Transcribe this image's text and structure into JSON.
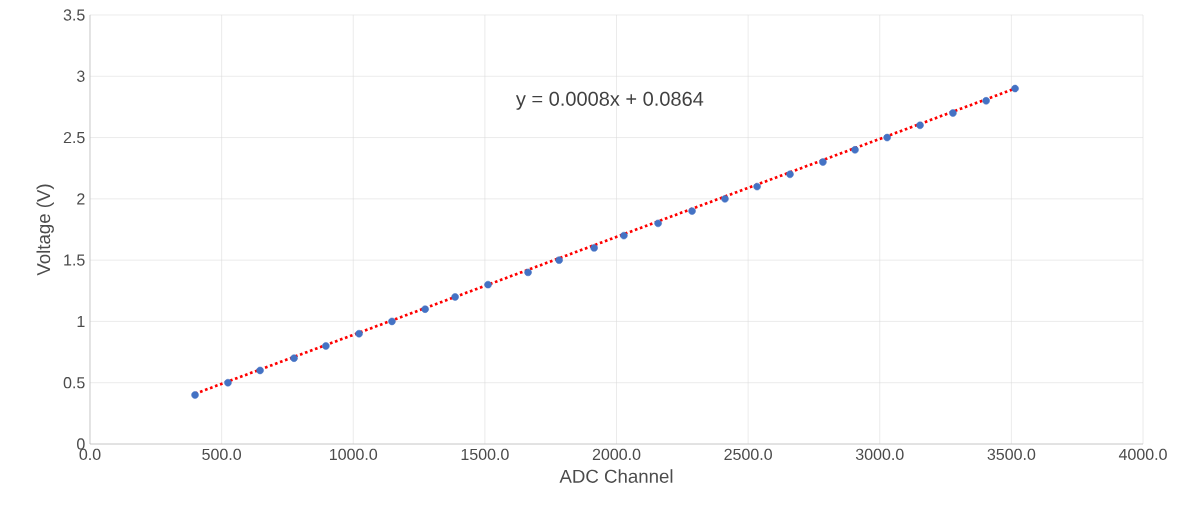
{
  "chart_data": {
    "type": "scatter",
    "xlabel": "ADC Channel",
    "ylabel": "Voltage (V)",
    "xlim": [
      0,
      4000
    ],
    "ylim": [
      0,
      3.5
    ],
    "xticks": [
      {
        "value": 0,
        "label": "0.0"
      },
      {
        "value": 500,
        "label": "500.0"
      },
      {
        "value": 1000,
        "label": "1000.0"
      },
      {
        "value": 1500,
        "label": "1500.0"
      },
      {
        "value": 2000,
        "label": "2000.0"
      },
      {
        "value": 2500,
        "label": "2500.0"
      },
      {
        "value": 3000,
        "label": "3000.0"
      },
      {
        "value": 3500,
        "label": "3500.0"
      },
      {
        "value": 4000,
        "label": "4000.0"
      }
    ],
    "yticks": [
      0,
      0.5,
      1,
      1.5,
      2,
      2.5,
      3,
      3.5
    ],
    "grid": true,
    "annotations": [
      "y = 0.0008x + 0.0864"
    ],
    "series": [
      {
        "marker": "circle",
        "color": "#4472c4",
        "x": [
          399,
          524,
          646,
          775,
          896,
          1022,
          1147,
          1273,
          1387,
          1512,
          1664,
          1782,
          1915,
          2028,
          2158,
          2287,
          2412,
          2534,
          2659,
          2784,
          2906,
          3028,
          3153,
          3278,
          3404,
          3514
        ],
        "values": [
          0.4,
          0.5,
          0.6,
          0.7,
          0.8,
          0.9,
          1.0,
          1.1,
          1.2,
          1.3,
          1.4,
          1.5,
          1.6,
          1.7,
          1.8,
          1.9,
          2.0,
          2.1,
          2.2,
          2.3,
          2.4,
          2.5,
          2.6,
          2.7,
          2.8,
          2.9
        ]
      },
      {
        "type": "line",
        "marker": "none",
        "color": "#ff0000",
        "line_style": "dotted",
        "x": [
          399,
          3514
        ],
        "values": [
          0.41,
          2.9
        ]
      }
    ]
  }
}
